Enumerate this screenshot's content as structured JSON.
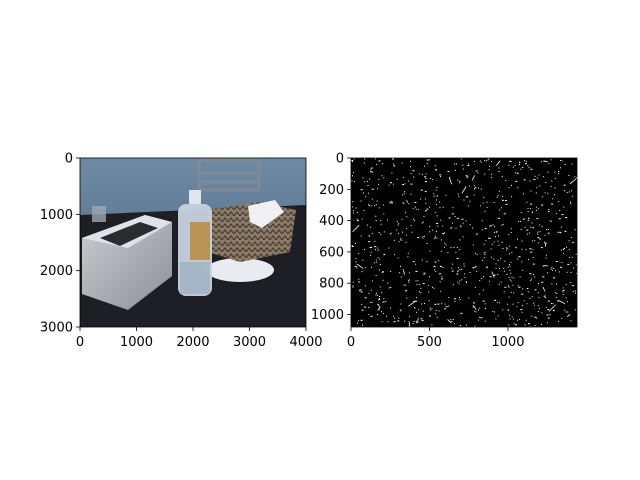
{
  "chart_data": [
    {
      "type": "image",
      "content": "photo",
      "xlim": [
        0,
        4000
      ],
      "ylim": [
        3000,
        0
      ],
      "xticks": [
        0,
        1000,
        2000,
        3000,
        4000
      ],
      "yticks": [
        0,
        1000,
        2000,
        3000
      ],
      "xtick_labels": [
        "0",
        "1000",
        "2000",
        "3000",
        "4000"
      ],
      "ytick_labels": [
        "0",
        "1000",
        "2000",
        "3000"
      ],
      "title": "",
      "xlabel": "",
      "ylabel": ""
    },
    {
      "type": "image",
      "content": "binary-edge-map",
      "xlim": [
        0,
        1440
      ],
      "ylim": [
        1080,
        0
      ],
      "xticks": [
        0,
        500,
        1000
      ],
      "yticks": [
        0,
        200,
        400,
        600,
        800,
        1000
      ],
      "xtick_labels": [
        "0",
        "500",
        "1000"
      ],
      "ytick_labels": [
        "0",
        "200",
        "400",
        "600",
        "800",
        "1000"
      ],
      "title": "",
      "xlabel": "",
      "ylabel": ""
    }
  ],
  "colors": {
    "wall": "#5b7790",
    "table": "#1d1f25",
    "edge_bg": "#000000",
    "edge_fg": "#ffffff"
  }
}
